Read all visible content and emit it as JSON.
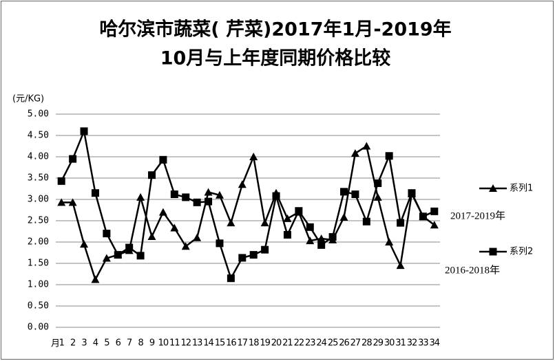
{
  "chart_data": {
    "type": "line",
    "title_lines": [
      "哈尔滨市蔬菜( 芹菜)2017年1月-2019年",
      "10月与上年度同期价格比较"
    ],
    "y_label": "(元/KG)",
    "x_label": "月",
    "categories": [
      "1",
      "2",
      "3",
      "4",
      "5",
      "6",
      "7",
      "8",
      "9",
      "10",
      "11",
      "12",
      "13",
      "14",
      "15",
      "16",
      "17",
      "18",
      "19",
      "20",
      "21",
      "22",
      "23",
      "24",
      "25",
      "26",
      "27",
      "28",
      "29",
      "30",
      "31",
      "32",
      "33",
      "34"
    ],
    "series": [
      {
        "name": "系列1",
        "color": "#000000",
        "marker": "triangle",
        "note": "2017-2019年",
        "values": [
          2.93,
          2.93,
          1.95,
          1.12,
          1.62,
          1.7,
          1.8,
          3.05,
          2.13,
          2.7,
          2.33,
          1.9,
          2.1,
          3.17,
          3.1,
          2.45,
          3.35,
          4.0,
          2.45,
          3.15,
          2.55,
          2.7,
          2.03,
          2.08,
          2.05,
          2.58,
          4.08,
          4.25,
          3.05,
          2.0,
          1.45,
          3.13,
          2.6,
          2.4
        ]
      },
      {
        "name": "系列2",
        "color": "#000000",
        "marker": "square",
        "note": "2016-2018年",
        "values": [
          3.43,
          3.95,
          4.6,
          3.15,
          2.2,
          1.7,
          1.87,
          1.68,
          3.57,
          3.93,
          3.12,
          3.05,
          2.93,
          2.95,
          1.97,
          1.15,
          1.63,
          1.7,
          1.82,
          3.08,
          2.17,
          2.73,
          2.35,
          1.93,
          2.12,
          3.18,
          3.12,
          2.48,
          3.38,
          4.02,
          2.45,
          3.15,
          2.6,
          2.72
        ]
      }
    ],
    "ylim": [
      0,
      5
    ],
    "yticks": [
      {
        "value": 0,
        "label": "0.00"
      },
      {
        "value": 0.5,
        "label": "0.50"
      },
      {
        "value": 1,
        "label": "1.00"
      },
      {
        "value": 1.5,
        "label": "1.50"
      },
      {
        "value": 2,
        "label": "2.00"
      },
      {
        "value": 2.5,
        "label": "2.50"
      },
      {
        "value": 3,
        "label": "3.00"
      },
      {
        "value": 3.5,
        "label": "3.50"
      },
      {
        "value": 4,
        "label": "4.00"
      },
      {
        "value": 4.5,
        "label": "4.50"
      },
      {
        "value": 5,
        "label": "5.00"
      }
    ],
    "grid": true
  }
}
